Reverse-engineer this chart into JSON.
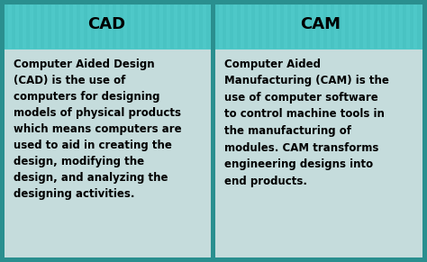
{
  "title_left": "CAD",
  "title_right": "CAM",
  "text_left": "Computer Aided Design\n(CAD) is the use of\ncomputers for designing\nmodels of physical products\nwhich means computers are\nused to aid in creating the\ndesign, modifying the\ndesign, and analyzing the\ndesigning activities.",
  "text_right": "Computer Aided\nManufacturing (CAM) is the\nuse of computer software\nto control machine tools in\nthe manufacturing of\nmodules. CAM transforms\nengineering designs into\nend products.",
  "header_bg_color": "#4ec8c8",
  "header_text_color": "#000000",
  "body_bg_color": "#dce8e8",
  "body_text_color": "#000000",
  "border_color": "#2a8f8f",
  "divider_color": "#2a8f8f",
  "title_fontsize": 13,
  "body_fontsize": 8.5,
  "fig_width": 4.74,
  "fig_height": 2.91,
  "dpi": 100
}
